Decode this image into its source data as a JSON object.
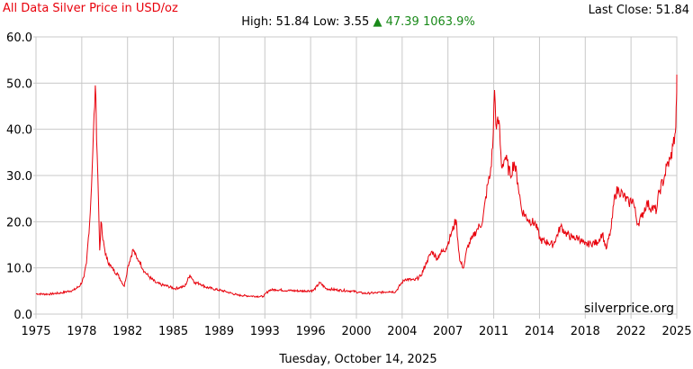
{
  "header": {
    "title": "All Data Silver Price in USD/oz",
    "last_close": "Last Close: 51.84",
    "high_label": "High: 51.84",
    "low_label": "Low: 3.55",
    "change_arrow": "▲",
    "change_value": "47.39",
    "change_pct": "1063.9%"
  },
  "footer": {
    "date": "Tuesday, October 14, 2025"
  },
  "watermark": "silverprice.org",
  "colors": {
    "line": "#e8000b",
    "grid": "#c8c8c8",
    "title": "#e8000b",
    "up": "#1a8a1a"
  },
  "chart_data": {
    "type": "line",
    "title": "All Data Silver Price in USD/oz",
    "xlabel": "",
    "ylabel": "",
    "xlim": [
      1975,
      2025.8
    ],
    "ylim": [
      0,
      60
    ],
    "grid": true,
    "x_ticks": [
      "1975",
      "1978",
      "1982",
      "1985",
      "1989",
      "1993",
      "1996",
      "2000",
      "2004",
      "2007",
      "2011",
      "2014",
      "2018",
      "2022",
      "2025"
    ],
    "y_ticks": [
      "0.0",
      "10.0",
      "20.0",
      "30.0",
      "40.0",
      "50.0",
      "60.0"
    ],
    "series": [
      {
        "x": [
          1975.0,
          1976.0,
          1977.0,
          1978.0,
          1978.5,
          1978.8,
          1979.0,
          1979.3,
          1979.5,
          1979.7,
          1979.9,
          1980.05,
          1980.15,
          1980.3,
          1980.6,
          1980.8,
          1981.0,
          1981.5,
          1982.0,
          1982.3,
          1982.7,
          1983.0,
          1983.2,
          1983.6,
          1984.0,
          1984.5,
          1985.0,
          1985.5,
          1986.0,
          1986.4,
          1986.8,
          1987.2,
          1987.6,
          1988.0,
          1988.5,
          1989.0,
          1990.0,
          1991.0,
          1992.0,
          1993.0,
          1993.5,
          1994.0,
          1995.0,
          1996.0,
          1997.0,
          1997.5,
          1998.0,
          1999.0,
          2000.0,
          2001.0,
          2002.0,
          2003.0,
          2003.5,
          2004.0,
          2004.3,
          2005.0,
          2005.5,
          2006.0,
          2006.4,
          2006.8,
          2007.0,
          2007.5,
          2008.0,
          2008.3,
          2008.6,
          2008.9,
          2009.2,
          2009.6,
          2010.0,
          2010.4,
          2010.8,
          2011.0,
          2011.2,
          2011.35,
          2011.5,
          2011.7,
          2011.9,
          2012.2,
          2012.6,
          2012.9,
          2013.2,
          2013.5,
          2014.0,
          2014.6,
          2015.0,
          2015.6,
          2016.0,
          2016.6,
          2017.0,
          2017.5,
          2018.0,
          2018.5,
          2019.0,
          2019.5,
          2019.9,
          2020.2,
          2020.6,
          2020.9,
          2021.2,
          2021.6,
          2022.0,
          2022.3,
          2022.7,
          2023.0,
          2023.4,
          2023.8,
          2024.2,
          2024.4,
          2024.8,
          2025.0,
          2025.3,
          2025.5,
          2025.65,
          2025.72,
          2025.78,
          2025.8
        ],
        "y": [
          4.4,
          4.3,
          4.6,
          5.2,
          6.2,
          8.0,
          11.0,
          22.0,
          35.0,
          49.5,
          30.0,
          13.8,
          20.0,
          16.0,
          12.0,
          11.0,
          10.0,
          8.5,
          6.0,
          10.5,
          14.0,
          12.0,
          11.5,
          9.2,
          8.0,
          6.8,
          6.3,
          6.0,
          5.5,
          5.8,
          6.0,
          8.5,
          6.8,
          6.6,
          5.8,
          5.5,
          4.9,
          4.1,
          3.9,
          3.8,
          5.2,
          5.3,
          5.1,
          5.0,
          5.1,
          6.8,
          5.5,
          5.2,
          5.0,
          4.5,
          4.6,
          4.9,
          4.8,
          6.8,
          7.6,
          7.3,
          8.2,
          11.5,
          13.6,
          12.0,
          13.0,
          14.2,
          18.0,
          20.5,
          11.5,
          10.0,
          14.5,
          16.5,
          18.5,
          20.0,
          28.0,
          30.0,
          36.0,
          48.5,
          40.0,
          42.0,
          32.0,
          34.0,
          30.0,
          33.0,
          28.5,
          22.5,
          20.5,
          19.5,
          16.0,
          15.5,
          15.0,
          19.0,
          17.5,
          16.5,
          16.5,
          15.0,
          15.3,
          15.5,
          17.5,
          14.0,
          18.5,
          26.0,
          27.0,
          25.5,
          24.0,
          25.0,
          19.5,
          21.0,
          24.0,
          23.0,
          22.5,
          26.5,
          29.5,
          32.0,
          33.5,
          36.5,
          39.0,
          40.5,
          46.5,
          51.84
        ]
      }
    ]
  }
}
